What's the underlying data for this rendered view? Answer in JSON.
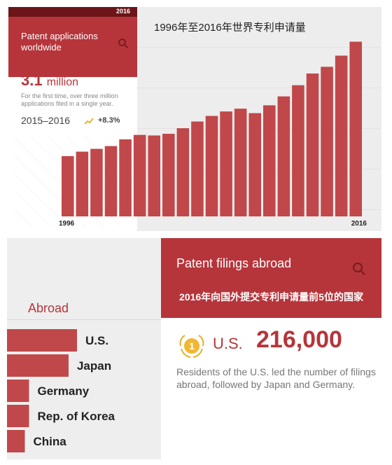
{
  "top_card": {
    "year_badge": "2016",
    "title": "Patent applications worldwide",
    "search_icon": "search-icon",
    "big_number": "3.1",
    "big_unit": "million",
    "description": "For the first time, over three million applications filed in a single year.",
    "years_range": "2015–2016",
    "growth": "+8.3%",
    "trend_icon": "trend-up-icon"
  },
  "chart_data": [
    {
      "type": "bar",
      "title": "1996年至2016年世界专利申请量",
      "categories": [
        "1996",
        "1997",
        "1998",
        "1999",
        "2000",
        "2001",
        "2002",
        "2003",
        "2004",
        "2005",
        "2006",
        "2007",
        "2008",
        "2009",
        "2010",
        "2011",
        "2012",
        "2013",
        "2014",
        "2015",
        "2016"
      ],
      "tick_labels": [
        "1996",
        "2016"
      ],
      "values": [
        1.08,
        1.16,
        1.21,
        1.26,
        1.38,
        1.46,
        1.45,
        1.48,
        1.58,
        1.7,
        1.8,
        1.88,
        1.93,
        1.85,
        1.99,
        2.15,
        2.35,
        2.56,
        2.68,
        2.88,
        3.13
      ],
      "ylim": [
        0,
        3.4
      ],
      "xlabel": "",
      "ylabel": "",
      "color": "#c0484a"
    },
    {
      "type": "bar",
      "orientation": "horizontal",
      "title": "Abroad",
      "categories": [
        "U.S.",
        "Japan",
        "Germany",
        "Rep. of Korea",
        "China"
      ],
      "values": [
        216000,
        190000,
        68000,
        68000,
        55000
      ],
      "color": "#c0484a"
    }
  ],
  "bottom_card": {
    "title": "Patent filings abroad",
    "search_icon": "search-icon",
    "subtitle": "2016年向国外提交专利申请量前5位的国家",
    "medal_icon": "medal-icon",
    "medal_text": "1",
    "country": "U.S.",
    "number": "216,000",
    "description": "Residents of the U.S. led the number of filings abroad, followed by Japan and Germany."
  }
}
